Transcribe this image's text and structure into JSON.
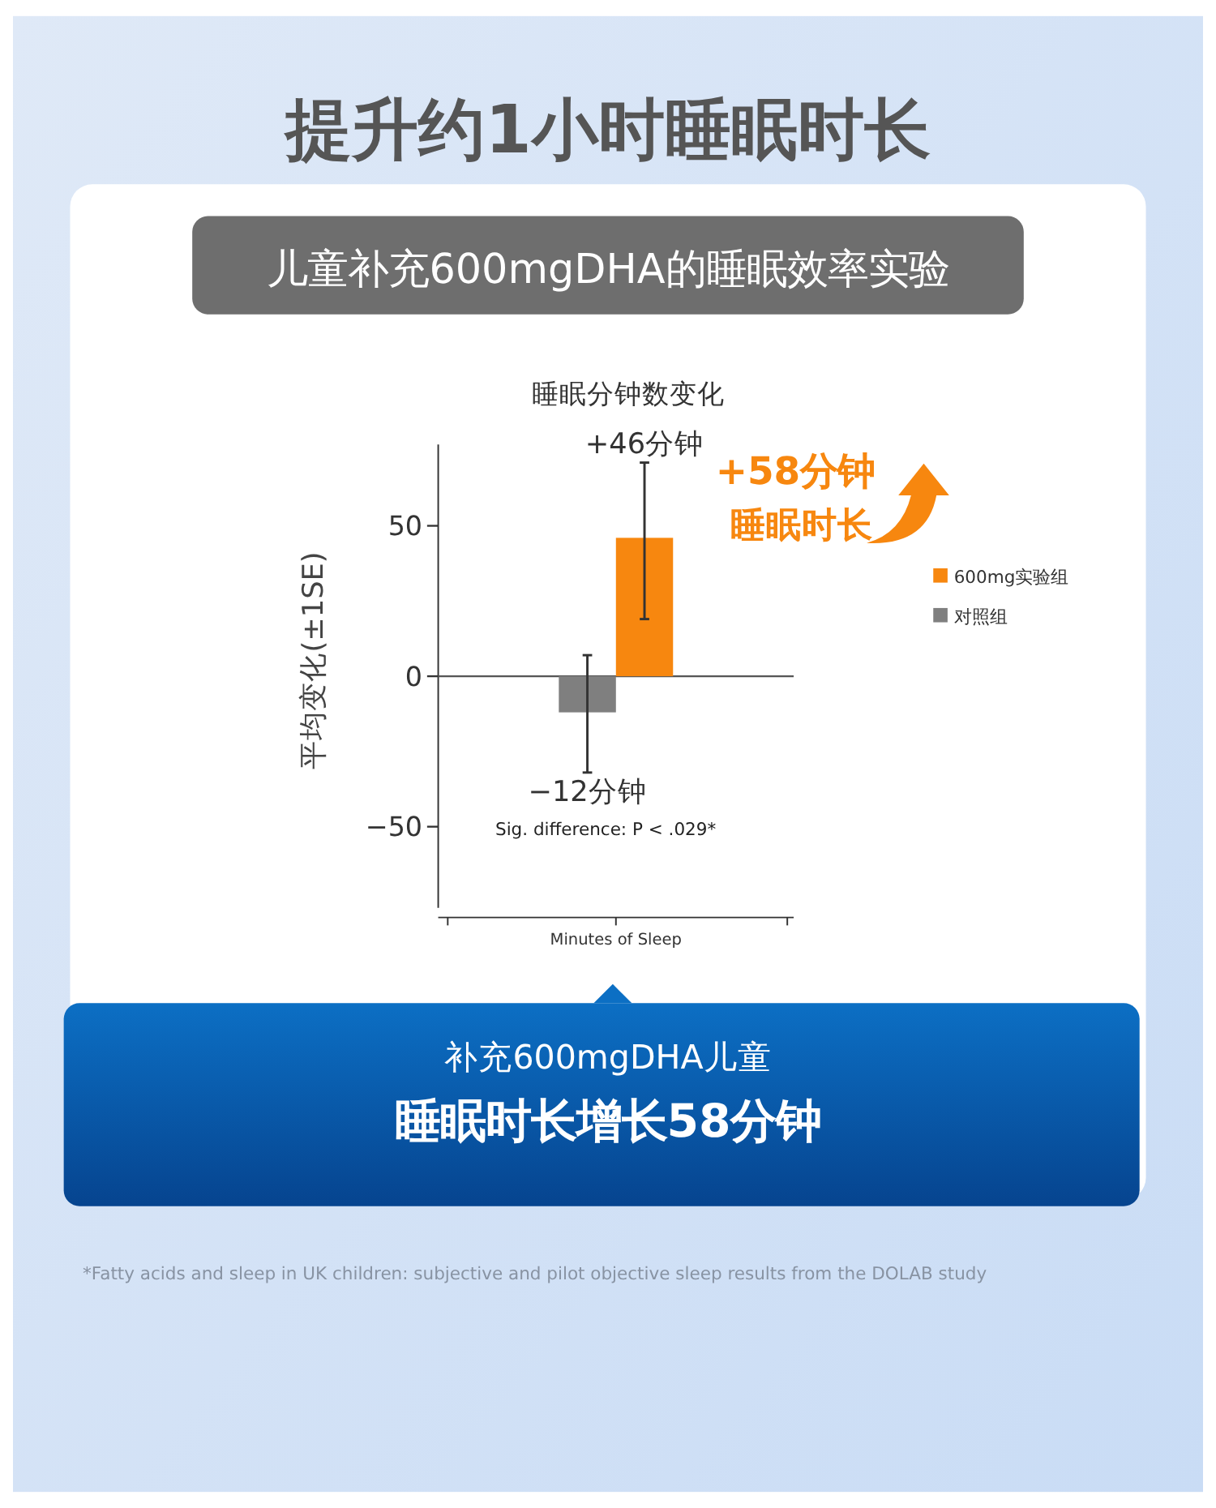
{
  "chart_data": {
    "type": "bar",
    "title": "提升约1小时睡眠时长",
    "subtitle": "儿童补充600mgDHA的睡眠效率实验",
    "ylabel": "平均变化(±1SE)",
    "categories": [
      "Minutes of Sleep"
    ],
    "series": [
      {
        "name": "对照组",
        "color": "#7f7f7f",
        "values": [
          -12
        ],
        "errors": [
          [
            -32,
            7
          ]
        ],
        "value_labels": [
          "−12分钟"
        ]
      },
      {
        "name": "600mg实验组",
        "color": "#f7870f",
        "values": [
          46
        ],
        "errors": [
          [
            19,
            71
          ]
        ],
        "value_labels": [
          "+46分钟"
        ]
      }
    ],
    "ylim": [
      -77,
      77
    ],
    "yticks": [
      {
        "value": -50,
        "label": "−50"
      },
      0,
      50
    ],
    "grid": false,
    "legend": "right",
    "ref_lines": [
      {
        "axis": "y",
        "value": 0
      }
    ],
    "annotations": [
      "睡眠分钟数变化",
      "+58分钟",
      "睡眠时长",
      "Sig. difference: P < .029*",
      "补充600mgDHA儿童",
      "睡眠时长增长58分钟",
      "*Fatty acids and sleep in UK children: subjective and pilot objective sleep results from the DOLAB study"
    ]
  }
}
